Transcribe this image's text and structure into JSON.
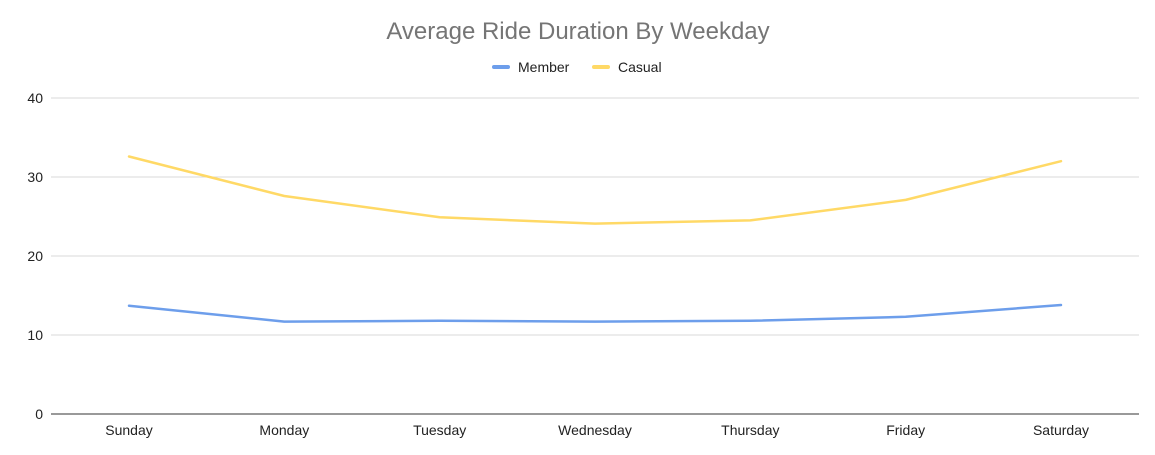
{
  "chart_data": {
    "type": "line",
    "title": "Average Ride Duration By Weekday",
    "xlabel": "",
    "ylabel": "",
    "categories": [
      "Sunday",
      "Monday",
      "Tuesday",
      "Wednesday",
      "Thursday",
      "Friday",
      "Saturday"
    ],
    "series": [
      {
        "name": "Member",
        "color": "#6d9eeb",
        "values": [
          13.7,
          11.7,
          11.8,
          11.7,
          11.8,
          12.3,
          13.8
        ]
      },
      {
        "name": "Casual",
        "color": "#ffd966",
        "values": [
          32.6,
          27.6,
          24.9,
          24.1,
          24.5,
          27.1,
          32.0
        ]
      }
    ],
    "ylim": [
      0,
      40
    ],
    "yticks": [
      0,
      10,
      20,
      30,
      40
    ],
    "grid": true,
    "legend_position": "top-center"
  }
}
